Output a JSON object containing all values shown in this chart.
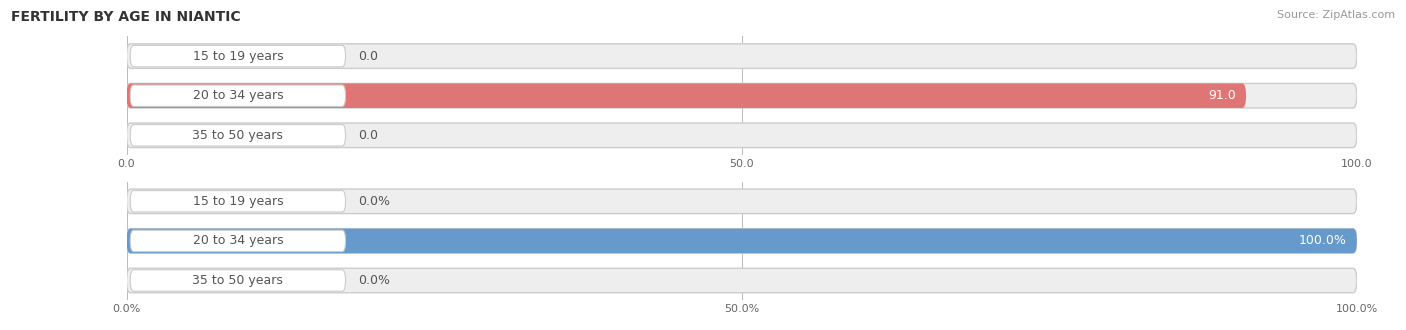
{
  "title": "FERTILITY BY AGE IN NIANTIC",
  "source": "Source: ZipAtlas.com",
  "top_chart": {
    "categories": [
      "15 to 19 years",
      "20 to 34 years",
      "35 to 50 years"
    ],
    "values": [
      0.0,
      91.0,
      0.0
    ],
    "bar_color": "#e07575",
    "bar_bg_color": "#eeeeee",
    "value_labels": [
      "0.0",
      "91.0",
      "0.0"
    ],
    "xlim": [
      0,
      100
    ],
    "xticks": [
      0.0,
      50.0,
      100.0
    ],
    "xtick_labels": [
      "0.0",
      "50.0",
      "100.0"
    ]
  },
  "bottom_chart": {
    "categories": [
      "15 to 19 years",
      "20 to 34 years",
      "35 to 50 years"
    ],
    "values": [
      0.0,
      100.0,
      0.0
    ],
    "bar_color": "#6699cc",
    "bar_bg_color": "#eeeeee",
    "value_labels": [
      "0.0%",
      "100.0%",
      "0.0%"
    ],
    "xlim": [
      0,
      100
    ],
    "xticks": [
      0.0,
      50.0,
      100.0
    ],
    "xtick_labels": [
      "0.0%",
      "50.0%",
      "100.0%"
    ]
  },
  "label_color": "#555555",
  "label_fontsize": 9,
  "value_fontsize": 9,
  "bar_height": 0.62,
  "background_color": "#ffffff",
  "grid_color": "#bbbbbb",
  "title_fontsize": 10,
  "source_fontsize": 8
}
